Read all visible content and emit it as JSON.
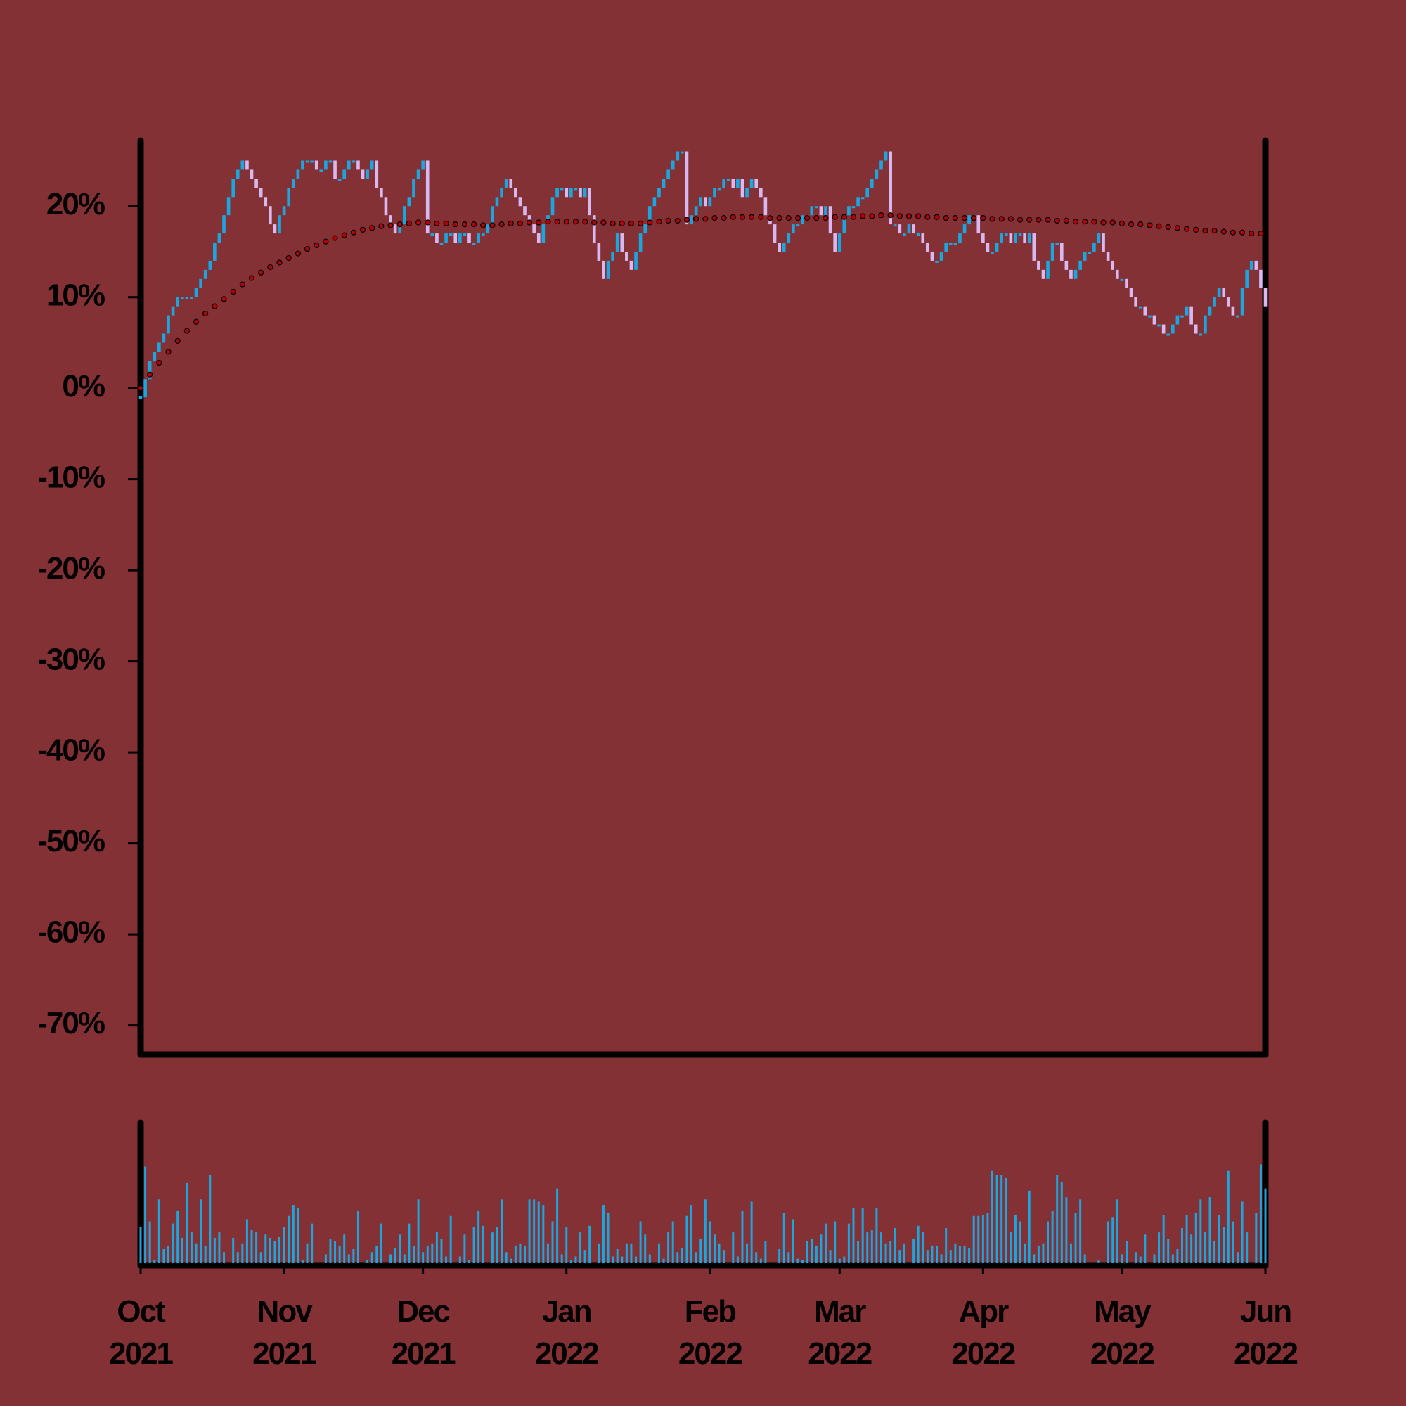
{
  "chart_data": [
    {
      "type": "candlestick",
      "xlim": [
        0,
        243
      ],
      "ylim": [
        -73.2,
        27.2
      ],
      "yticks": [
        {
          "value": 20,
          "label": "20%"
        },
        {
          "value": 10,
          "label": "10%"
        },
        {
          "value": 0,
          "label": "0%"
        },
        {
          "value": -10,
          "label": "-10%"
        },
        {
          "value": -20,
          "label": "-20%"
        },
        {
          "value": -30,
          "label": "-30%"
        },
        {
          "value": -40,
          "label": "-40%"
        },
        {
          "value": -50,
          "label": "-50%"
        },
        {
          "value": -60,
          "label": "-60%"
        },
        {
          "value": -70,
          "label": "-70%"
        }
      ],
      "series": [
        {
          "type": "candlestick",
          "up_color": "#1aa7e0",
          "down_color": "#d8b8f0",
          "values": [
            -1,
            1,
            3,
            4,
            5,
            6,
            8,
            9,
            10,
            10,
            10,
            10,
            11,
            12,
            13,
            14,
            16,
            17,
            19,
            21,
            23,
            24,
            25,
            24,
            23,
            22,
            21,
            20,
            18,
            17,
            19,
            20,
            22,
            23,
            24,
            25,
            25,
            25,
            24,
            24,
            25,
            25,
            23,
            23,
            24,
            25,
            25,
            24,
            23,
            24,
            25,
            22,
            21,
            19,
            18,
            17,
            18,
            20,
            21,
            23,
            24,
            25,
            17,
            17,
            16,
            16,
            17,
            17,
            16,
            17,
            17,
            16,
            16,
            17,
            17,
            18,
            20,
            21,
            22,
            23,
            22,
            21,
            20,
            19,
            18,
            17,
            16,
            18,
            19,
            21,
            22,
            22,
            21,
            22,
            22,
            21,
            22,
            19,
            16,
            14,
            12,
            14,
            15,
            17,
            15,
            14,
            13,
            15,
            17,
            18,
            20,
            21,
            22,
            23,
            24,
            25,
            26,
            26,
            18,
            19,
            20,
            21,
            20,
            21,
            22,
            22,
            23,
            23,
            22,
            23,
            21,
            22,
            23,
            22,
            21,
            19,
            18,
            16,
            15,
            16,
            17,
            18,
            18,
            19,
            19,
            20,
            20,
            19,
            20,
            17,
            15,
            17,
            19,
            20,
            20,
            21,
            21,
            22,
            23,
            24,
            25,
            26,
            18,
            18,
            17,
            17,
            18,
            17,
            17,
            16,
            15,
            14,
            14,
            15,
            16,
            16,
            16,
            17,
            18,
            19,
            19,
            17,
            16,
            15,
            15,
            16,
            17,
            17,
            16,
            17,
            17,
            16,
            17,
            14,
            13,
            12,
            14,
            16,
            16,
            14,
            13,
            12,
            13,
            14,
            15,
            15,
            16,
            17,
            15,
            14,
            13,
            12,
            12,
            11,
            10,
            9,
            9,
            8,
            8,
            7,
            7,
            6,
            6,
            7,
            8,
            8,
            9,
            7,
            6,
            6,
            8,
            9,
            10,
            11,
            10,
            9,
            8,
            8,
            11,
            13,
            14,
            13,
            11,
            9
          ]
        },
        {
          "type": "dots",
          "color": "#b00000",
          "values": [
            0,
            null,
            1.5,
            null,
            2.8,
            null,
            4,
            null,
            5.2,
            null,
            6.3,
            null,
            7.3,
            null,
            8.2,
            null,
            9,
            null,
            9.8,
            null,
            10.6,
            null,
            11.4,
            null,
            12.1,
            null,
            12.7,
            null,
            13.3,
            null,
            13.8,
            null,
            14.3,
            null,
            14.8,
            null,
            15.3,
            null,
            15.7,
            null,
            16.1,
            null,
            16.5,
            null,
            16.8,
            null,
            17.1,
            null,
            17.4,
            null,
            17.6,
            null,
            17.8,
            null,
            17.9,
            null,
            18,
            null,
            18.1,
            null,
            18.2,
            null,
            18.2,
            null,
            18.1,
            null,
            18.1,
            null,
            18,
            null,
            18,
            null,
            18,
            null,
            17.9,
            null,
            17.9,
            null,
            18,
            null,
            18.1,
            null,
            18.1,
            null,
            18.2,
            null,
            18.2,
            null,
            18.3,
            null,
            18.3,
            null,
            18.3,
            null,
            18.3,
            null,
            18.3,
            null,
            18.2,
            null,
            18.2,
            null,
            18.1,
            null,
            18.1,
            null,
            18.1,
            null,
            18.1,
            null,
            18.2,
            null,
            18.3,
            null,
            18.4,
            null,
            18.4,
            null,
            18.5,
            null,
            18.6,
            null,
            18.6,
            null,
            18.7,
            null,
            18.7,
            null,
            18.8,
            null,
            18.8,
            null,
            18.8,
            null,
            18.8,
            null,
            18.7,
            null,
            18.7,
            null,
            18.7,
            null,
            18.7,
            null,
            18.7,
            null,
            18.7,
            null,
            18.7,
            null,
            18.8,
            null,
            18.8,
            null,
            18.8,
            null,
            18.9,
            null,
            18.9,
            null,
            19,
            null,
            19,
            null,
            18.9,
            null,
            18.9,
            null,
            18.9,
            null,
            18.8,
            null,
            18.8,
            null,
            18.7,
            null,
            18.7,
            null,
            18.7,
            null,
            18.7,
            null,
            18.7,
            null,
            18.6,
            null,
            18.6,
            null,
            18.6,
            null,
            18.5,
            null,
            18.5,
            null,
            18.5,
            null,
            18.5,
            null,
            18.4,
            null,
            18.4,
            null,
            18.3,
            null,
            18.3,
            null,
            18.3,
            null,
            18.2,
            null,
            18.2,
            null,
            18.1,
            null,
            18,
            null,
            18,
            null,
            17.9,
            null,
            17.8,
            null,
            17.7,
            null,
            17.6,
            null,
            17.5,
            null,
            17.4,
            null,
            17.3,
            null,
            17.3,
            null,
            17.2,
            null,
            17.1,
            null,
            17.1,
            null,
            17,
            null,
            17,
            null
          ]
        }
      ]
    },
    {
      "type": "bar",
      "color": "#1aa7e0",
      "xlim": [
        0,
        243
      ],
      "ylim": [
        0,
        130
      ],
      "xticks": [
        {
          "value": 0,
          "label": "Oct\n2021"
        },
        {
          "value": 31,
          "label": "Nov\n2021"
        },
        {
          "value": 61,
          "label": "Dec\n2021"
        },
        {
          "value": 92,
          "label": "Jan\n2022"
        },
        {
          "value": 123,
          "label": "Feb\n2022"
        },
        {
          "value": 151,
          "label": "Mar\n2022"
        },
        {
          "value": 182,
          "label": "Apr\n2022"
        },
        {
          "value": 212,
          "label": "May\n2022"
        },
        {
          "value": 243,
          "label": "Jun\n2022"
        }
      ],
      "values": [
        35,
        90,
        40,
        5,
        60,
        15,
        18,
        38,
        50,
        25,
        75,
        30,
        20,
        60,
        18,
        82,
        25,
        30,
        12,
        2,
        25,
        12,
        20,
        42,
        32,
        30,
        12,
        28,
        25,
        22,
        26,
        35,
        45,
        55,
        52,
        5,
        20,
        38,
        2,
        2,
        10,
        24,
        22,
        18,
        28,
        10,
        15,
        50,
        2,
        5,
        12,
        18,
        38,
        2,
        10,
        16,
        28,
        10,
        38,
        18,
        60,
        12,
        18,
        20,
        30,
        24,
        8,
        45,
        2,
        8,
        28,
        5,
        35,
        50,
        36,
        2,
        30,
        35,
        60,
        12,
        6,
        18,
        20,
        18,
        60,
        60,
        58,
        55,
        20,
        40,
        70,
        10,
        35,
        5,
        8,
        30,
        14,
        36,
        2,
        20,
        55,
        48,
        8,
        15,
        8,
        20,
        20,
        8,
        40,
        28,
        10,
        2,
        20,
        6,
        30,
        40,
        12,
        16,
        45,
        55,
        12,
        24,
        60,
        40,
        28,
        20,
        14,
        2,
        30,
        8,
        50,
        20,
        58,
        12,
        6,
        22,
        2,
        2,
        15,
        48,
        12,
        42,
        6,
        5,
        22,
        24,
        18,
        28,
        38,
        14,
        40,
        6,
        8,
        38,
        52,
        22,
        52,
        30,
        32,
        52,
        30,
        20,
        22,
        34,
        14,
        20,
        2,
        24,
        36,
        30,
        14,
        18,
        18,
        10,
        34,
        14,
        20,
        18,
        18,
        16,
        45,
        45,
        46,
        48,
        86,
        82,
        82,
        80,
        30,
        46,
        40,
        20,
        68,
        10,
        18,
        20,
        40,
        50,
        82,
        76,
        62,
        20,
        48,
        60,
        10,
        2,
        2,
        5,
        2,
        40,
        44,
        60,
        10,
        22,
        2,
        12,
        8,
        28,
        2,
        10,
        30,
        46,
        24,
        10,
        15,
        34,
        46,
        28,
        48,
        60,
        30,
        62,
        22,
        46,
        35,
        86,
        40,
        12,
        58,
        30,
        2,
        48,
        92,
        70
      ]
    }
  ]
}
